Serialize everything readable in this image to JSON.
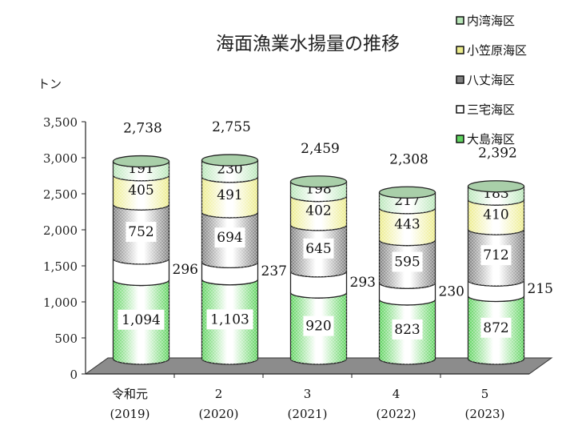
{
  "chart_data": {
    "type": "bar",
    "stacked": true,
    "style": "3d-cylinder",
    "title": "海面漁業水揚量の推移",
    "ylabel": "トン",
    "xlabel": "",
    "ylim": [
      0,
      3500
    ],
    "yticks": [
      0,
      500,
      1000,
      1500,
      2000,
      2500,
      3000,
      3500
    ],
    "ytick_labels": [
      "0",
      "500",
      "1,000",
      "1,500",
      "2,000",
      "2,500",
      "3,000",
      "3,500"
    ],
    "categories": [
      {
        "line1": "令和元",
        "line2": "(2019)"
      },
      {
        "line1": "2",
        "line2": "(2020)"
      },
      {
        "line1": "3",
        "line2": "(2021)"
      },
      {
        "line1": "4",
        "line2": "(2022)"
      },
      {
        "line1": "5",
        "line2": "(2023)"
      }
    ],
    "series": [
      {
        "name": "大島海区",
        "values": [
          1094,
          1103,
          920,
          823,
          872
        ],
        "labels": [
          "1,094",
          "1,103",
          "920",
          "823",
          "872"
        ],
        "color": "#5fd35f"
      },
      {
        "name": "三宅海区",
        "values": [
          296,
          237,
          293,
          230,
          215
        ],
        "labels": [
          "296",
          "237",
          "293",
          "230",
          "215"
        ],
        "color": "#ffffff"
      },
      {
        "name": "八丈海区",
        "values": [
          752,
          694,
          645,
          595,
          712
        ],
        "labels": [
          "752",
          "694",
          "645",
          "595",
          "712"
        ],
        "color": "#808080"
      },
      {
        "name": "小笠原海区",
        "values": [
          405,
          491,
          402,
          443,
          410
        ],
        "labels": [
          "405",
          "491",
          "402",
          "443",
          "410"
        ],
        "color": "#ecec8c"
      },
      {
        "name": "内湾海区",
        "values": [
          191,
          230,
          198,
          217,
          183
        ],
        "labels": [
          "191",
          "230",
          "198",
          "217",
          "183"
        ],
        "color": "#b8e6b8"
      }
    ],
    "totals": [
      "2,738",
      "2,755",
      "2,459",
      "2,308",
      "2,392"
    ],
    "legend_order": [
      "内湾海区",
      "小笠原海区",
      "八丈海区",
      "三宅海区",
      "大島海区"
    ],
    "legend_placement": "top-right",
    "grid": false
  }
}
